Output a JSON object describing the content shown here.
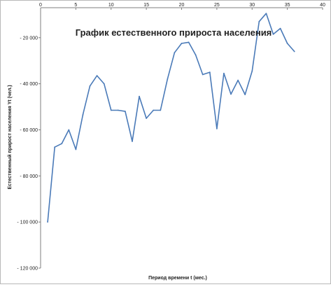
{
  "chart_data": {
    "type": "line",
    "title": "График естественного прироста населения",
    "xlabel": "Период времени t  (мес.)",
    "ylabel": "Естественный прирост населения Yt (чел.)",
    "xlim": [
      0,
      40
    ],
    "ylim": [
      -120000,
      -7000
    ],
    "xticks": [
      0,
      5,
      10,
      15,
      20,
      25,
      30,
      35,
      40
    ],
    "xtick_labels": [
      "0",
      "5",
      "10",
      "15",
      "20",
      "25",
      "30",
      "35",
      "40"
    ],
    "yticks": [
      -20000,
      -40000,
      -60000,
      -80000,
      -100000,
      -120000
    ],
    "ytick_labels": [
      "- 20 000",
      "- 40 000",
      "- 60 000",
      "- 80 000",
      "- 100 000",
      "- 120 000"
    ],
    "grid": false,
    "line_color": "#4a7ab8",
    "series": [
      {
        "x": [
          1,
          2,
          3,
          4,
          5,
          6,
          7,
          8,
          9,
          10,
          11,
          12,
          13,
          14,
          15,
          16,
          17,
          18,
          19,
          20,
          21,
          22,
          23,
          24,
          25,
          26,
          27,
          28,
          29,
          30,
          31,
          32,
          33,
          34,
          35,
          36
        ],
        "y": [
          -100000,
          -67500,
          -66000,
          -60000,
          -68500,
          -53500,
          -41000,
          -36500,
          -40000,
          -51500,
          -51500,
          -52000,
          -65000,
          -45500,
          -55000,
          -51500,
          -51500,
          -38000,
          -26500,
          -22500,
          -22000,
          -27500,
          -36000,
          -35000,
          -59500,
          -35500,
          -44500,
          -38500,
          -44700,
          -34500,
          -13000,
          -9500,
          -18500,
          -16000,
          -22500,
          -26000
        ]
      }
    ]
  }
}
